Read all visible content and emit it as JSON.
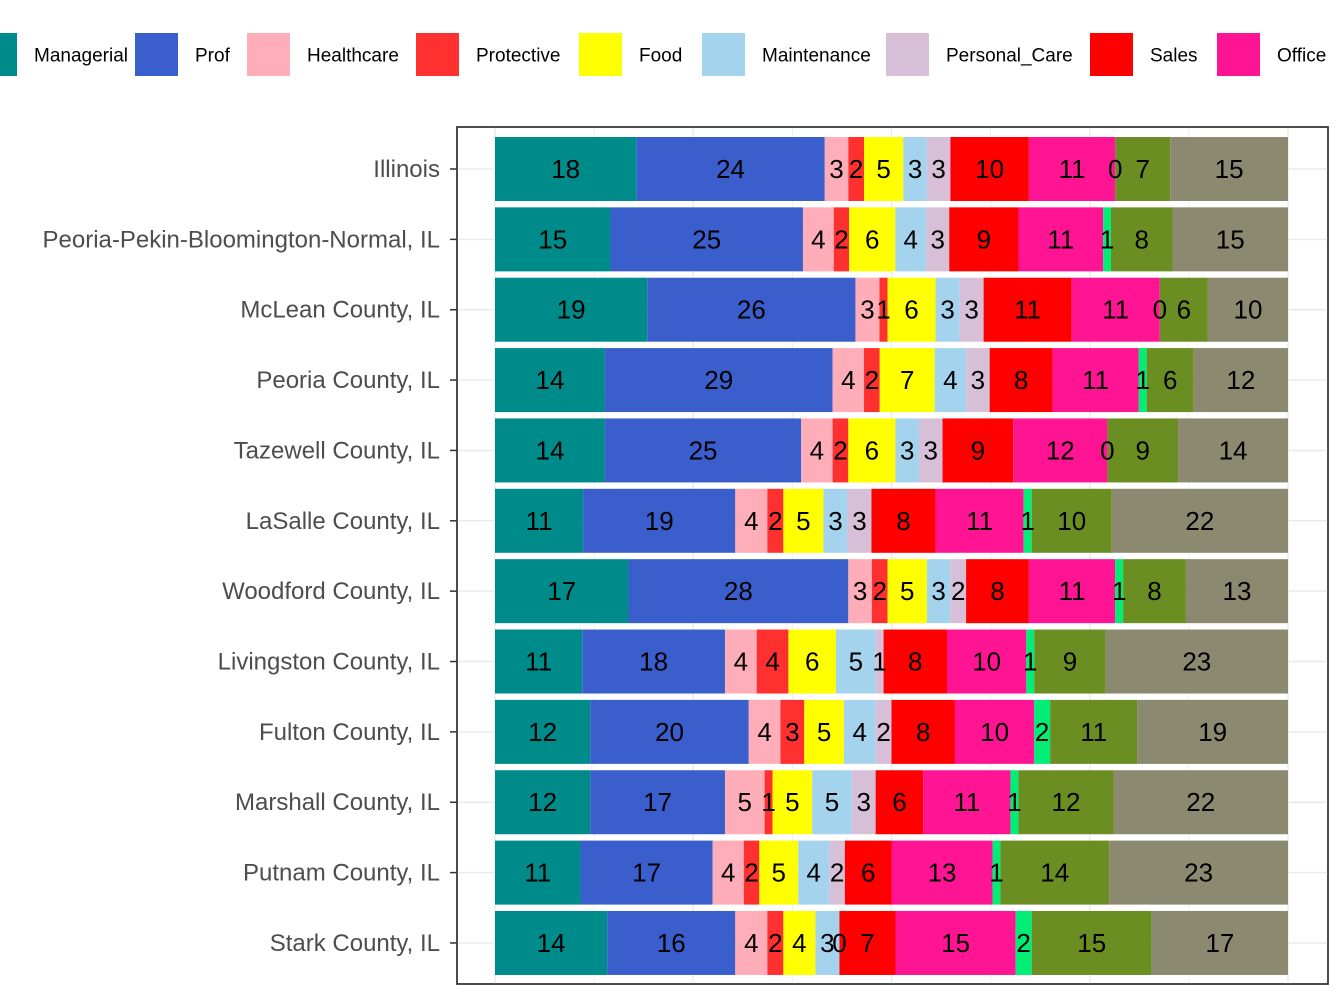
{
  "chart_data": {
    "type": "bar",
    "orientation": "horizontal",
    "stacked": true,
    "legend_position": "top",
    "grid": true,
    "categories": [
      "Illinois",
      "Peoria-Pekin-Bloomington-Normal, IL",
      "McLean County, IL",
      "Peoria County, IL",
      "Tazewell County, IL",
      "LaSalle County, IL",
      "Woodford County, IL",
      "Livingston County, IL",
      "Fulton County, IL",
      "Marshall County, IL",
      "Putnam County, IL",
      "Stark County, IL"
    ],
    "xlim": [
      0,
      100
    ],
    "series": [
      {
        "name": "Managerial",
        "color": "#008B8B",
        "values": [
          18,
          15,
          19,
          14,
          14,
          11,
          17,
          11,
          12,
          12,
          11,
          14
        ]
      },
      {
        "name": "Prof",
        "color": "#3A5FCD",
        "values": [
          24,
          25,
          26,
          29,
          25,
          19,
          28,
          18,
          20,
          17,
          17,
          16
        ]
      },
      {
        "name": "Healthcare",
        "color": "#FFAEB9",
        "values": [
          3,
          4,
          3,
          4,
          4,
          4,
          3,
          4,
          4,
          5,
          4,
          4
        ]
      },
      {
        "name": "Protective",
        "color": "#FF3030",
        "values": [
          2,
          2,
          1,
          2,
          2,
          2,
          2,
          4,
          3,
          1,
          2,
          2
        ]
      },
      {
        "name": "Food",
        "color": "#FFFF00",
        "values": [
          5,
          6,
          6,
          7,
          6,
          5,
          5,
          6,
          5,
          5,
          5,
          4
        ]
      },
      {
        "name": "Maintenance",
        "color": "#A4D3EE",
        "values": [
          3,
          4,
          3,
          4,
          3,
          3,
          3,
          5,
          4,
          5,
          4,
          3
        ]
      },
      {
        "name": "Personal_Care",
        "color": "#D8BFD8",
        "values": [
          3,
          3,
          3,
          3,
          3,
          3,
          2,
          1,
          2,
          3,
          2,
          0
        ]
      },
      {
        "name": "Sales",
        "color": "#FF0000",
        "values": [
          10,
          9,
          11,
          8,
          9,
          8,
          8,
          8,
          8,
          6,
          6,
          7
        ]
      },
      {
        "name": "Office",
        "color": "#FF1493",
        "values": [
          11,
          11,
          11,
          11,
          12,
          11,
          11,
          10,
          10,
          11,
          13,
          15
        ]
      },
      {
        "color": "#00EE76",
        "values": [
          0,
          1,
          0,
          1,
          0,
          1,
          1,
          1,
          2,
          1,
          1,
          2
        ]
      },
      {
        "color": "#6B8E23",
        "values": [
          7,
          8,
          6,
          6,
          9,
          10,
          8,
          9,
          11,
          12,
          14,
          15
        ]
      },
      {
        "color": "#8B8970",
        "values": [
          15,
          15,
          10,
          12,
          14,
          22,
          13,
          23,
          19,
          22,
          23,
          17
        ]
      }
    ]
  }
}
